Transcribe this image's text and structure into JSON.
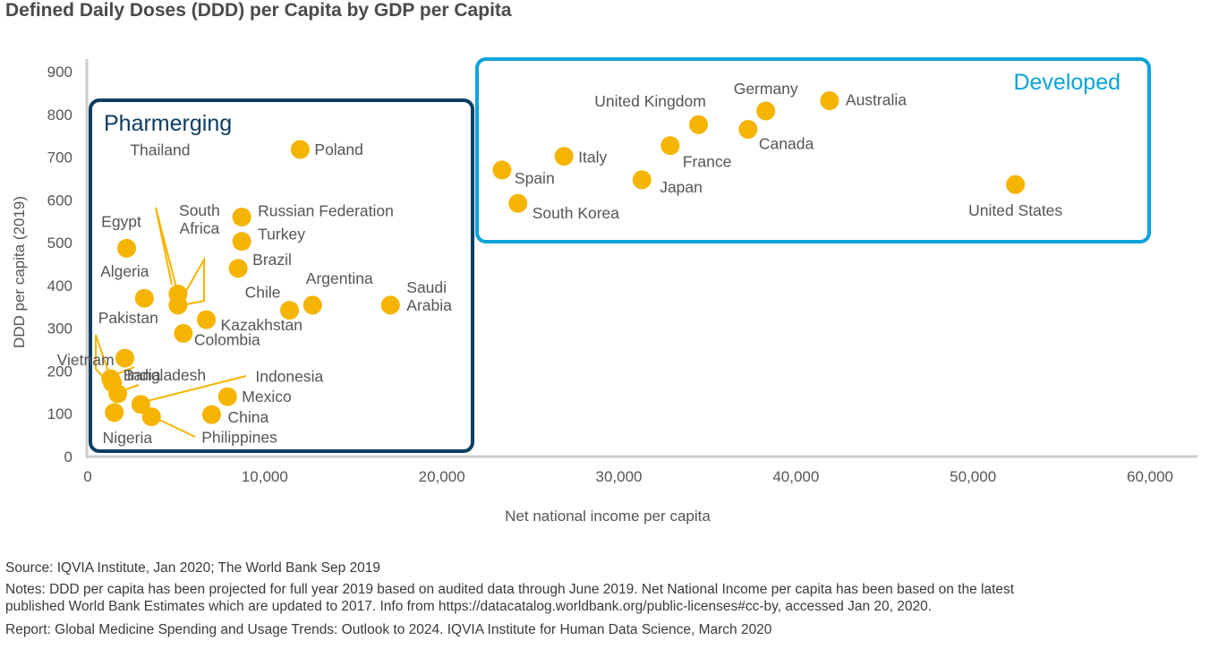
{
  "chart_data": {
    "type": "scatter",
    "title": "Defined Daily Doses (DDD) per Capita by GDP per Capita",
    "xlabel": "Net national income per capita",
    "ylabel": "DDD per capita (2019)",
    "xlim": [
      0,
      60000
    ],
    "ylim": [
      0,
      900
    ],
    "xticks": [
      0,
      10000,
      20000,
      30000,
      40000,
      50000,
      60000
    ],
    "xtick_labels": [
      "0",
      "10,000",
      "20,000",
      "30,000",
      "40,000",
      "50,000",
      "60,000"
    ],
    "yticks": [
      0,
      100,
      200,
      300,
      400,
      500,
      600,
      700,
      800,
      900
    ],
    "ytick_labels": [
      "0",
      "100",
      "200",
      "300",
      "400",
      "500",
      "600",
      "700",
      "800",
      "900"
    ],
    "grid": false,
    "marker_color": "#F5B400",
    "groups": [
      {
        "name": "Pharmerging",
        "color": "#0B3D63"
      },
      {
        "name": "Developed",
        "color": "#0AA3DA"
      }
    ],
    "points": [
      {
        "label": "Poland",
        "x": 12000,
        "y": 718,
        "group": "Pharmerging"
      },
      {
        "label": "Russian Federation",
        "x": 8700,
        "y": 560,
        "group": "Pharmerging"
      },
      {
        "label": "Turkey",
        "x": 8700,
        "y": 503,
        "group": "Pharmerging"
      },
      {
        "label": "Brazil",
        "x": 8500,
        "y": 440,
        "group": "Pharmerging"
      },
      {
        "label": "Egypt",
        "x": 2200,
        "y": 487,
        "group": "Pharmerging"
      },
      {
        "label": "Thailand",
        "x": 5100,
        "y": 380,
        "group": "Pharmerging"
      },
      {
        "label": "South Africa",
        "x": 5100,
        "y": 354,
        "group": "Pharmerging"
      },
      {
        "label": "Algeria",
        "x": 3200,
        "y": 370,
        "group": "Pharmerging"
      },
      {
        "label": "Chile",
        "x": 11400,
        "y": 342,
        "group": "Pharmerging"
      },
      {
        "label": "Argentina",
        "x": 12700,
        "y": 354,
        "group": "Pharmerging"
      },
      {
        "label": "Saudi Arabia",
        "x": 17100,
        "y": 354,
        "group": "Pharmerging"
      },
      {
        "label": "Kazakhstan",
        "x": 6700,
        "y": 320,
        "group": "Pharmerging"
      },
      {
        "label": "Colombia",
        "x": 5400,
        "y": 288,
        "group": "Pharmerging"
      },
      {
        "label": "Vietnam",
        "x": 2100,
        "y": 230,
        "group": "Pharmerging"
      },
      {
        "label": "Pakistan",
        "x": 1300,
        "y": 182,
        "group": "Pharmerging"
      },
      {
        "label": "Bangladesh",
        "x": 1400,
        "y": 172,
        "group": "Pharmerging"
      },
      {
        "label": "India",
        "x": 1700,
        "y": 147,
        "group": "Pharmerging"
      },
      {
        "label": "Indonesia",
        "x": 3000,
        "y": 122,
        "group": "Pharmerging"
      },
      {
        "label": "Nigeria",
        "x": 1500,
        "y": 103,
        "group": "Pharmerging"
      },
      {
        "label": "Philippines",
        "x": 3600,
        "y": 93,
        "group": "Pharmerging"
      },
      {
        "label": "Mexico",
        "x": 7900,
        "y": 140,
        "group": "Pharmerging"
      },
      {
        "label": "China",
        "x": 7000,
        "y": 98,
        "group": "Pharmerging"
      },
      {
        "label": "Australia",
        "x": 41900,
        "y": 832,
        "group": "Developed"
      },
      {
        "label": "Germany",
        "x": 38300,
        "y": 808,
        "group": "Developed"
      },
      {
        "label": "United Kingdom",
        "x": 34500,
        "y": 776,
        "group": "Developed"
      },
      {
        "label": "Canada",
        "x": 37300,
        "y": 765,
        "group": "Developed"
      },
      {
        "label": "France",
        "x": 32900,
        "y": 727,
        "group": "Developed"
      },
      {
        "label": "Italy",
        "x": 26900,
        "y": 702,
        "group": "Developed"
      },
      {
        "label": "Spain",
        "x": 23400,
        "y": 670,
        "group": "Developed"
      },
      {
        "label": "Japan",
        "x": 31300,
        "y": 647,
        "group": "Developed"
      },
      {
        "label": "South Korea",
        "x": 24300,
        "y": 592,
        "group": "Developed"
      },
      {
        "label": "United States",
        "x": 52400,
        "y": 636,
        "group": "Developed"
      }
    ]
  },
  "footer": {
    "source": "Source: IQVIA Institute, Jan 2020; The World Bank Sep 2019",
    "notes_line1": "Notes: DDD per capita has been projected for full year 2019 based on audited data through June 2019. Net National Income per capita has been based on the latest",
    "notes_line2": "published World Bank Estimates which are updated to 2017. Info from https://datacatalog.worldbank.org/public-licenses#cc-by, accessed Jan 20, 2020.",
    "report": "Report: Global Medicine Spending and Usage Trends: Outlook to 2024. IQVIA Institute for Human Data Science, March 2020"
  }
}
